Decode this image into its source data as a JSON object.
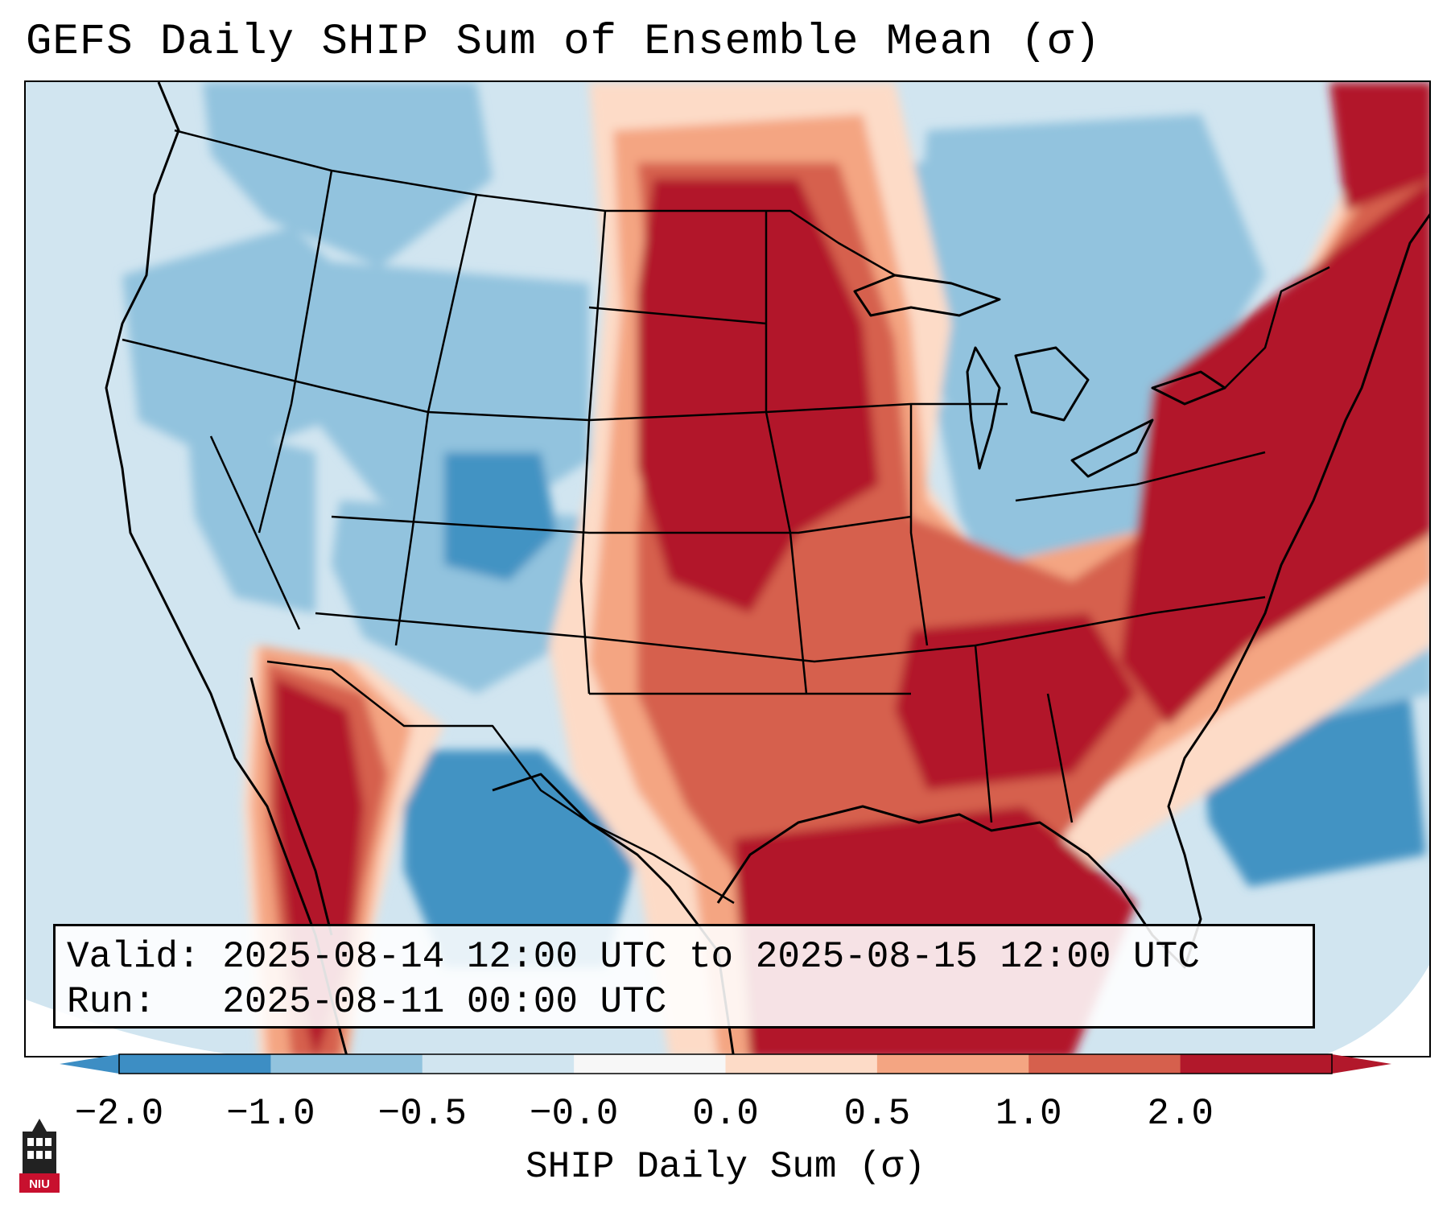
{
  "title": "GEFS Daily SHIP Sum of Ensemble Mean (σ)",
  "info": {
    "valid_label": "Valid:",
    "valid_value": "2025-08-14 12:00 UTC to 2025-08-15 12:00 UTC",
    "run_label": "Run:",
    "run_value": "2025-08-11 00:00 UTC"
  },
  "colorbar": {
    "label": "SHIP Daily Sum (σ)",
    "ticks": [
      "−2.0",
      "−1.0",
      "−0.5",
      "−0.0",
      "0.0",
      "0.5",
      "1.0",
      "2.0"
    ],
    "colors": [
      "#3d8ec4",
      "#92c3de",
      "#d1e5f0",
      "#f7f7f7",
      "#fddbc7",
      "#f4a582",
      "#d6604d",
      "#b2182b"
    ],
    "extend": "both"
  },
  "logo": {
    "text": "NIU",
    "icon": "university-tower-icon"
  }
}
